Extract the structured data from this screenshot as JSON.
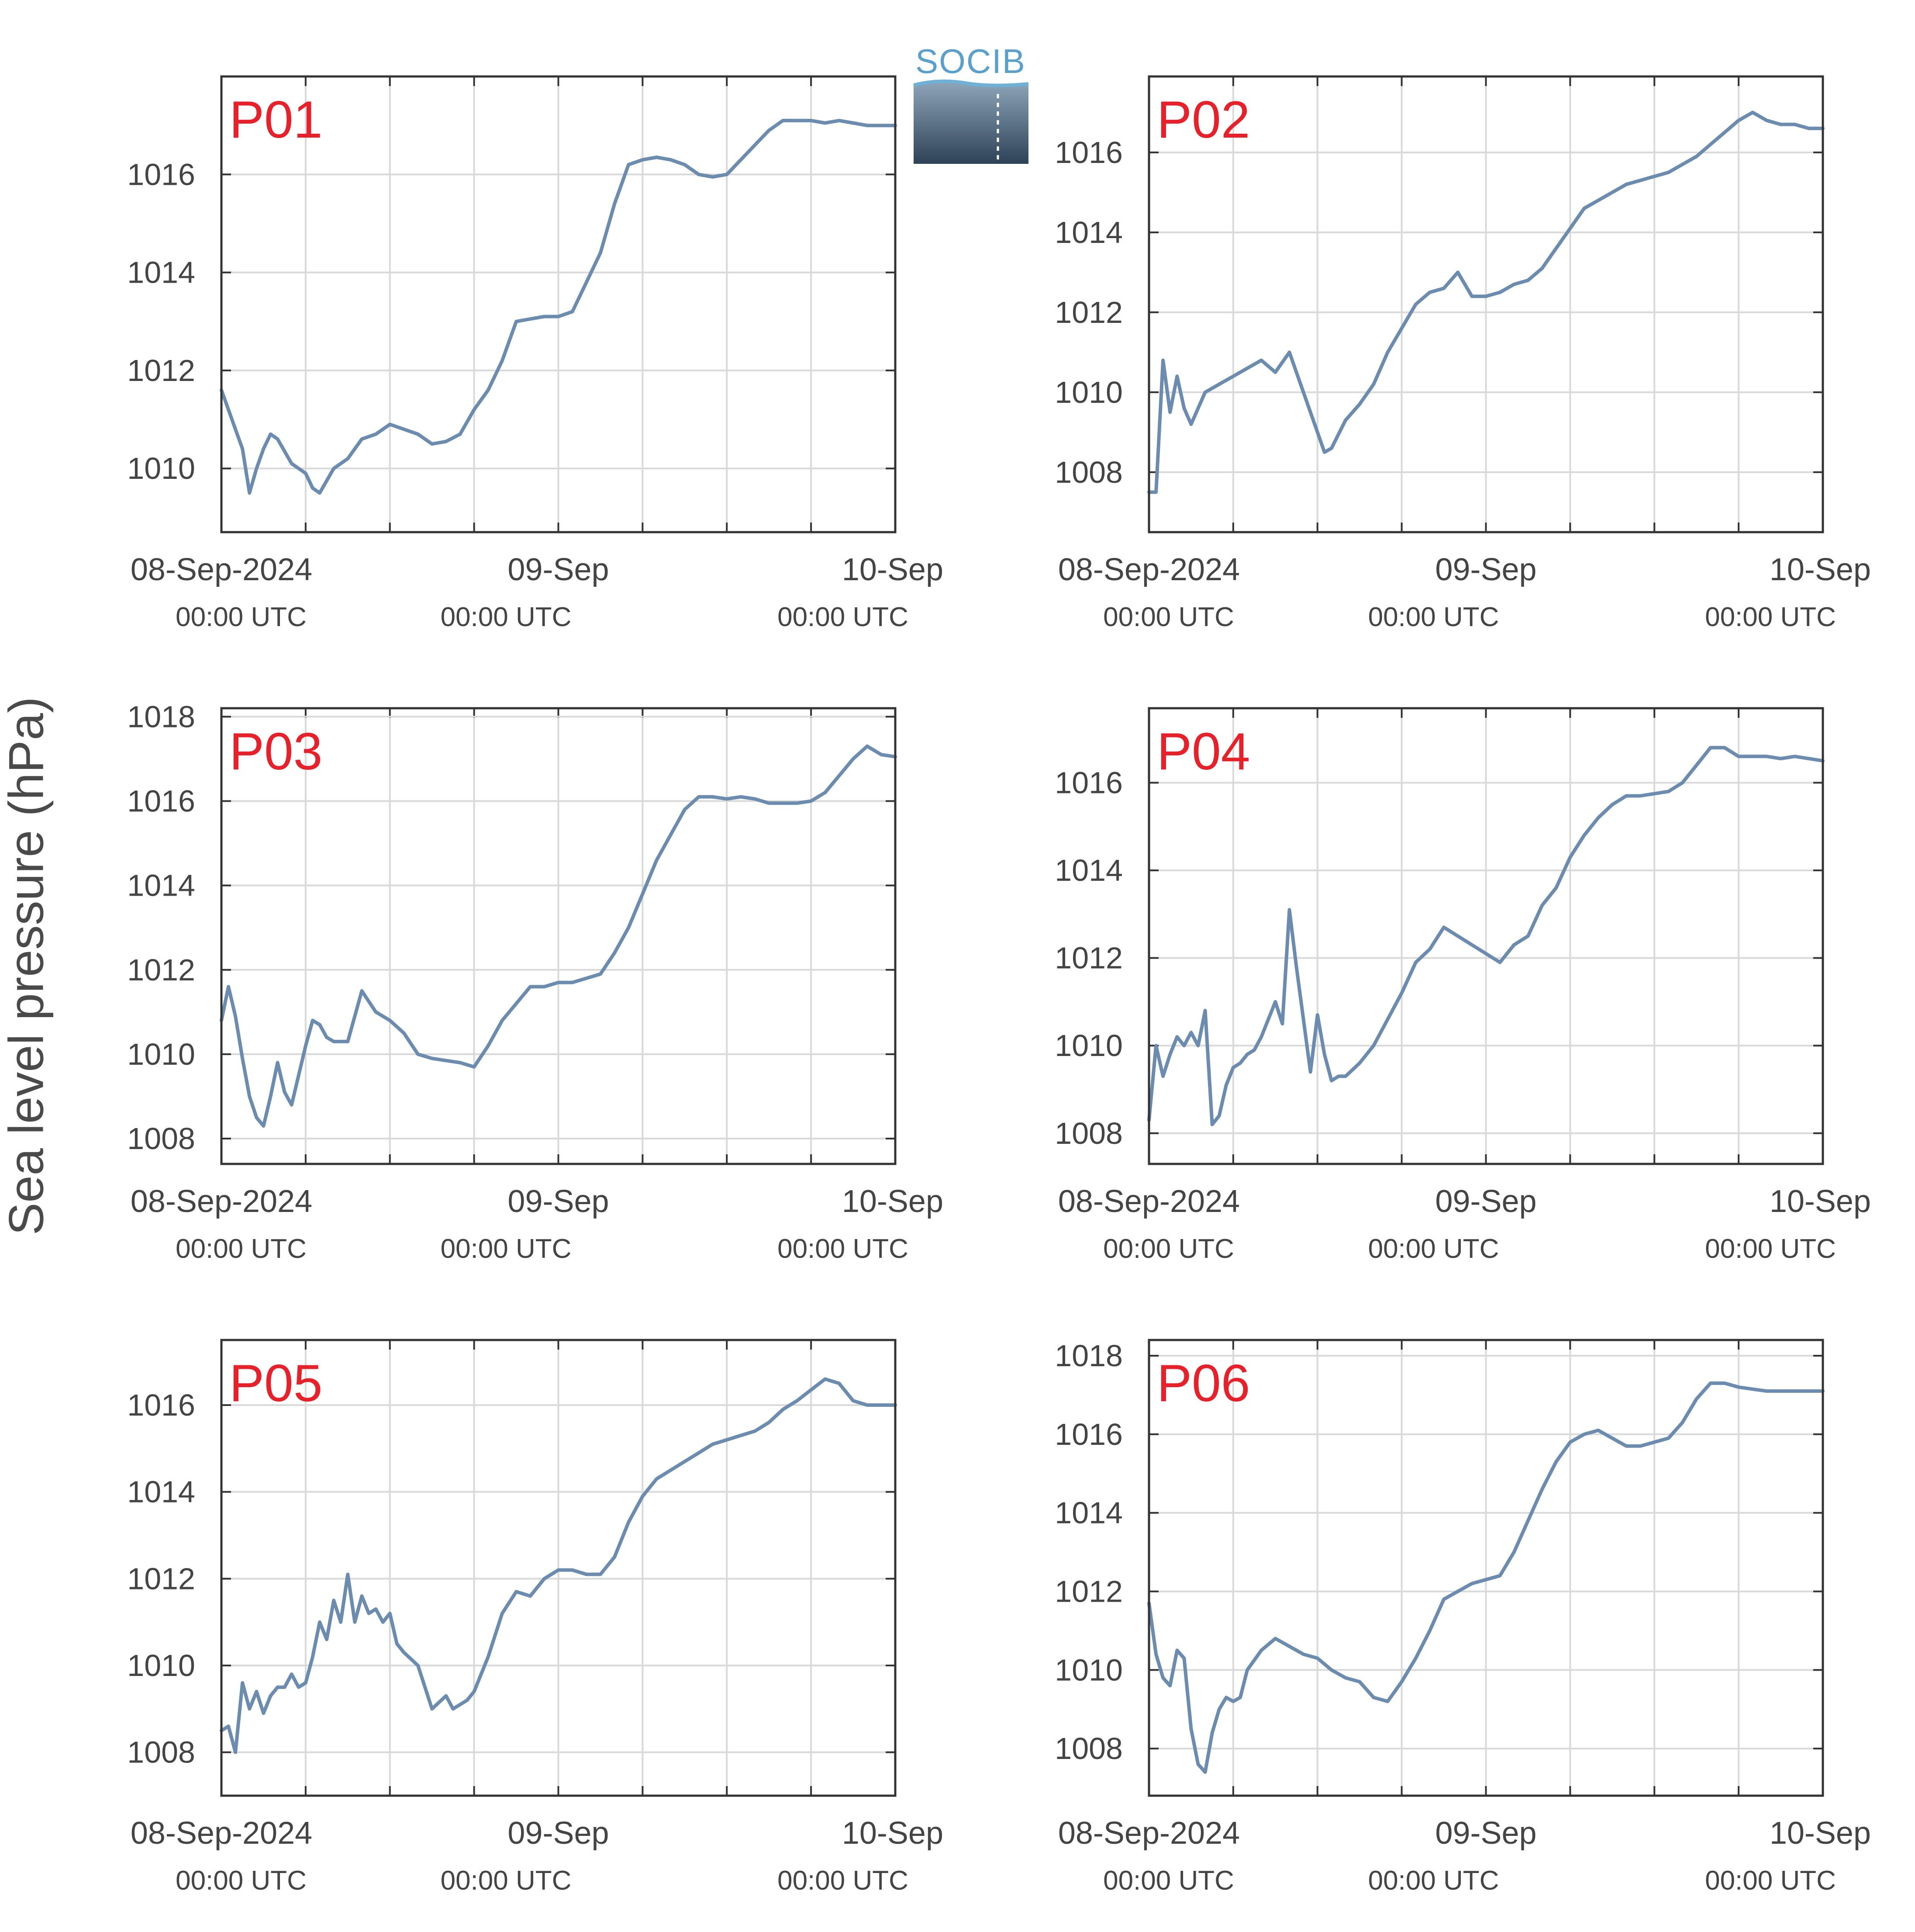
{
  "figure": {
    "ylabel": "Sea level pressure (hPa)",
    "logo_text": "SOCIB",
    "colors": {
      "series": "#6b8cae",
      "panel_label": "#e8202a",
      "axis": "#333333",
      "grid": "#d9d9d9",
      "text": "#444444"
    }
  },
  "chart_data": [
    {
      "type": "line",
      "panel": "P01",
      "x_ticks": [
        {
          "date": "08-Sep-2024",
          "time": "00:00 UTC"
        },
        {
          "date": "09-Sep",
          "time": "00:00 UTC"
        },
        {
          "date": "10-Sep",
          "time": "00:00 UTC"
        }
      ],
      "xlim": [
        "2024-09-08T00:00",
        "2024-09-10T00:00"
      ],
      "y_ticks": [
        1010,
        1012,
        1014,
        1016
      ],
      "ylim": [
        1008.7,
        1018.0
      ],
      "grid": true,
      "x_hours": [
        0,
        0.5,
        1,
        1.5,
        2,
        2.5,
        3,
        3.5,
        4,
        5,
        6,
        6.5,
        7,
        8,
        9,
        10,
        11,
        12,
        13,
        14,
        15,
        16,
        17,
        18,
        19,
        20,
        21,
        22,
        23,
        24,
        25,
        26,
        27,
        28,
        29,
        30,
        31,
        32,
        33,
        34,
        35,
        36,
        37,
        38,
        39,
        40,
        41,
        42,
        43,
        44,
        45,
        46,
        47,
        48
      ],
      "values": [
        1011.6,
        1011.2,
        1010.8,
        1010.4,
        1009.5,
        1010.0,
        1010.4,
        1010.7,
        1010.6,
        1010.1,
        1009.9,
        1009.6,
        1009.5,
        1010.0,
        1010.2,
        1010.6,
        1010.7,
        1010.9,
        1010.8,
        1010.7,
        1010.5,
        1010.55,
        1010.7,
        1011.2,
        1011.6,
        1012.2,
        1013.0,
        1013.05,
        1013.1,
        1013.1,
        1013.2,
        1013.8,
        1014.4,
        1015.4,
        1016.2,
        1016.3,
        1016.35,
        1016.3,
        1016.2,
        1016.0,
        1015.95,
        1016.0,
        1016.3,
        1016.6,
        1016.9,
        1017.1,
        1017.1,
        1017.1,
        1017.05,
        1017.1,
        1017.05,
        1017.0,
        1017.0,
        1017.0
      ]
    },
    {
      "type": "line",
      "panel": "P02",
      "x_ticks": [
        {
          "date": "08-Sep-2024",
          "time": "00:00 UTC"
        },
        {
          "date": "09-Sep",
          "time": "00:00 UTC"
        },
        {
          "date": "10-Sep",
          "time": "00:00 UTC"
        }
      ],
      "xlim": [
        "2024-09-08T00:00",
        "2024-09-10T00:00"
      ],
      "y_ticks": [
        1008,
        1010,
        1012,
        1014,
        1016
      ],
      "ylim": [
        1006.5,
        1017.9
      ],
      "grid": true,
      "x_hours": [
        0,
        0.5,
        1,
        1.5,
        2,
        2.5,
        3,
        3.5,
        4,
        5,
        6,
        7,
        8,
        9,
        10,
        11,
        12,
        12.5,
        13,
        14,
        15,
        16,
        17,
        18,
        19,
        20,
        21,
        22,
        23,
        24,
        25,
        26,
        27,
        28,
        29,
        30,
        31,
        32,
        33,
        34,
        35,
        36,
        37,
        38,
        39,
        40,
        41,
        42,
        43,
        44,
        45,
        46,
        47,
        48
      ],
      "values": [
        1007.5,
        1007.5,
        1010.8,
        1009.5,
        1010.4,
        1009.6,
        1009.2,
        1009.6,
        1010.0,
        1010.2,
        1010.4,
        1010.6,
        1010.8,
        1010.5,
        1011.0,
        1010.0,
        1009.0,
        1008.5,
        1008.6,
        1009.3,
        1009.7,
        1010.2,
        1011.0,
        1011.6,
        1012.2,
        1012.5,
        1012.6,
        1013.0,
        1012.4,
        1012.4,
        1012.5,
        1012.7,
        1012.8,
        1013.1,
        1013.6,
        1014.1,
        1014.6,
        1014.8,
        1015.0,
        1015.2,
        1015.3,
        1015.4,
        1015.5,
        1015.7,
        1015.9,
        1016.2,
        1016.5,
        1016.8,
        1017.0,
        1016.8,
        1016.7,
        1016.7,
        1016.6,
        1016.6
      ]
    },
    {
      "type": "line",
      "panel": "P03",
      "x_ticks": [
        {
          "date": "08-Sep-2024",
          "time": "00:00 UTC"
        },
        {
          "date": "09-Sep",
          "time": "00:00 UTC"
        },
        {
          "date": "10-Sep",
          "time": "00:00 UTC"
        }
      ],
      "xlim": [
        "2024-09-08T00:00",
        "2024-09-10T00:00"
      ],
      "y_ticks": [
        1008,
        1010,
        1012,
        1014,
        1016,
        1018
      ],
      "ylim": [
        1007.4,
        1018.2
      ],
      "grid": true,
      "x_hours": [
        0,
        0.5,
        1,
        1.5,
        2,
        2.5,
        3,
        3.5,
        4,
        4.5,
        5,
        5.5,
        6,
        6.5,
        7,
        7.5,
        8,
        9,
        10,
        11,
        12,
        13,
        14,
        15,
        16,
        17,
        18,
        19,
        20,
        21,
        22,
        23,
        24,
        25,
        26,
        27,
        28,
        29,
        30,
        31,
        32,
        33,
        34,
        35,
        36,
        37,
        38,
        39,
        40,
        41,
        42,
        43,
        44,
        45,
        46,
        47,
        48
      ],
      "values": [
        1010.8,
        1011.6,
        1010.9,
        1009.9,
        1009.0,
        1008.5,
        1008.3,
        1009.0,
        1009.8,
        1009.1,
        1008.8,
        1009.5,
        1010.2,
        1010.8,
        1010.7,
        1010.4,
        1010.3,
        1010.3,
        1011.5,
        1011.0,
        1010.8,
        1010.5,
        1010.0,
        1009.9,
        1009.85,
        1009.8,
        1009.7,
        1010.2,
        1010.8,
        1011.2,
        1011.6,
        1011.6,
        1011.7,
        1011.7,
        1011.8,
        1011.9,
        1012.4,
        1013.0,
        1013.8,
        1014.6,
        1015.2,
        1015.8,
        1016.1,
        1016.1,
        1016.05,
        1016.1,
        1016.05,
        1015.95,
        1015.95,
        1015.95,
        1016.0,
        1016.2,
        1016.6,
        1017.0,
        1017.3,
        1017.1,
        1017.05
      ]
    },
    {
      "type": "line",
      "panel": "P04",
      "x_ticks": [
        {
          "date": "08-Sep-2024",
          "time": "00:00 UTC"
        },
        {
          "date": "09-Sep",
          "time": "00:00 UTC"
        },
        {
          "date": "10-Sep",
          "time": "00:00 UTC"
        }
      ],
      "xlim": [
        "2024-09-08T00:00",
        "2024-09-10T00:00"
      ],
      "y_ticks": [
        1008,
        1010,
        1012,
        1014,
        1016
      ],
      "ylim": [
        1007.3,
        1017.7
      ],
      "grid": true,
      "x_hours": [
        0,
        0.5,
        1,
        1.5,
        2,
        2.5,
        3,
        3.5,
        4,
        4.5,
        5,
        5.5,
        6,
        6.5,
        7,
        7.5,
        8,
        9,
        9.5,
        10,
        10.5,
        11,
        11.5,
        12,
        12.5,
        13,
        13.5,
        14,
        15,
        16,
        17,
        18,
        19,
        20,
        21,
        22,
        23,
        24,
        25,
        26,
        27,
        28,
        29,
        30,
        31,
        32,
        33,
        34,
        35,
        36,
        37,
        38,
        39,
        40,
        41,
        42,
        43,
        44,
        45,
        46,
        47,
        48
      ],
      "values": [
        1008.3,
        1010.0,
        1009.3,
        1009.8,
        1010.2,
        1010.0,
        1010.3,
        1010.0,
        1010.8,
        1008.2,
        1008.4,
        1009.1,
        1009.5,
        1009.6,
        1009.8,
        1009.9,
        1010.2,
        1011.0,
        1010.5,
        1013.1,
        1011.8,
        1010.6,
        1009.4,
        1010.7,
        1009.8,
        1009.2,
        1009.3,
        1009.3,
        1009.6,
        1010.0,
        1010.6,
        1011.2,
        1011.9,
        1012.2,
        1012.7,
        1012.5,
        1012.3,
        1012.1,
        1011.9,
        1012.3,
        1012.5,
        1013.2,
        1013.6,
        1014.3,
        1014.8,
        1015.2,
        1015.5,
        1015.7,
        1015.7,
        1015.75,
        1015.8,
        1016.0,
        1016.4,
        1016.8,
        1016.8,
        1016.6,
        1016.6,
        1016.6,
        1016.55,
        1016.6,
        1016.55,
        1016.5
      ]
    },
    {
      "type": "line",
      "panel": "P05",
      "x_ticks": [
        {
          "date": "08-Sep-2024",
          "time": "00:00 UTC"
        },
        {
          "date": "09-Sep",
          "time": "00:00 UTC"
        },
        {
          "date": "10-Sep",
          "time": "00:00 UTC"
        }
      ],
      "xlim": [
        "2024-09-08T00:00",
        "2024-09-10T00:00"
      ],
      "y_ticks": [
        1008,
        1010,
        1012,
        1014,
        1016
      ],
      "ylim": [
        1007.0,
        1017.5
      ],
      "grid": true,
      "x_hours": [
        0,
        0.5,
        1,
        1.5,
        2,
        2.5,
        3,
        3.5,
        4,
        4.5,
        5,
        5.5,
        6,
        6.5,
        7,
        7.5,
        8,
        8.5,
        9,
        9.5,
        10,
        10.5,
        11,
        11.5,
        12,
        12.5,
        13,
        14,
        15,
        16,
        16.5,
        17,
        17.5,
        18,
        19,
        20,
        21,
        22,
        23,
        24,
        25,
        26,
        27,
        28,
        29,
        30,
        31,
        32,
        33,
        34,
        35,
        36,
        37,
        38,
        39,
        40,
        41,
        42,
        43,
        44,
        45,
        46,
        47,
        48
      ],
      "values": [
        1008.5,
        1008.6,
        1008.0,
        1009.6,
        1009.0,
        1009.4,
        1008.9,
        1009.3,
        1009.5,
        1009.5,
        1009.8,
        1009.5,
        1009.6,
        1010.2,
        1011.0,
        1010.6,
        1011.5,
        1011.0,
        1012.1,
        1011.0,
        1011.6,
        1011.2,
        1011.3,
        1011.0,
        1011.2,
        1010.5,
        1010.3,
        1010.0,
        1009.0,
        1009.3,
        1009.0,
        1009.1,
        1009.2,
        1009.4,
        1010.2,
        1011.2,
        1011.7,
        1011.6,
        1012.0,
        1012.2,
        1012.2,
        1012.1,
        1012.1,
        1012.5,
        1013.3,
        1013.9,
        1014.3,
        1014.5,
        1014.7,
        1014.9,
        1015.1,
        1015.2,
        1015.3,
        1015.4,
        1015.6,
        1015.9,
        1016.1,
        1016.35,
        1016.6,
        1016.5,
        1016.1,
        1016.0,
        1016.0,
        1016.0
      ]
    },
    {
      "type": "line",
      "panel": "P06",
      "x_ticks": [
        {
          "date": "08-Sep-2024",
          "time": "00:00 UTC"
        },
        {
          "date": "09-Sep",
          "time": "00:00 UTC"
        },
        {
          "date": "10-Sep",
          "time": "00:00 UTC"
        }
      ],
      "xlim": [
        "2024-09-08T00:00",
        "2024-09-10T00:00"
      ],
      "y_ticks": [
        1008,
        1010,
        1012,
        1014,
        1016,
        1018
      ],
      "ylim": [
        1006.8,
        1018.4
      ],
      "grid": true,
      "x_hours": [
        0,
        0.5,
        1,
        1.5,
        2,
        2.5,
        3,
        3.5,
        4,
        4.5,
        5,
        5.5,
        6,
        6.5,
        7,
        8,
        9,
        10,
        11,
        12,
        13,
        14,
        15,
        16,
        17,
        18,
        19,
        20,
        21,
        22,
        23,
        24,
        25,
        26,
        27,
        28,
        29,
        30,
        31,
        32,
        33,
        34,
        35,
        36,
        37,
        38,
        39,
        40,
        41,
        42,
        43,
        44,
        45,
        46,
        47,
        48
      ],
      "values": [
        1011.7,
        1010.4,
        1009.8,
        1009.6,
        1010.5,
        1010.3,
        1008.5,
        1007.6,
        1007.4,
        1008.4,
        1009.0,
        1009.3,
        1009.2,
        1009.3,
        1010.0,
        1010.5,
        1010.8,
        1010.6,
        1010.4,
        1010.3,
        1010.0,
        1009.8,
        1009.7,
        1009.3,
        1009.2,
        1009.7,
        1010.3,
        1011.0,
        1011.8,
        1012.0,
        1012.2,
        1012.3,
        1012.4,
        1013.0,
        1013.8,
        1014.6,
        1015.3,
        1015.8,
        1016.0,
        1016.1,
        1015.9,
        1015.7,
        1015.7,
        1015.8,
        1015.9,
        1016.3,
        1016.9,
        1017.3,
        1017.3,
        1017.2,
        1017.15,
        1017.1,
        1017.1,
        1017.1,
        1017.1,
        1017.1
      ]
    }
  ]
}
